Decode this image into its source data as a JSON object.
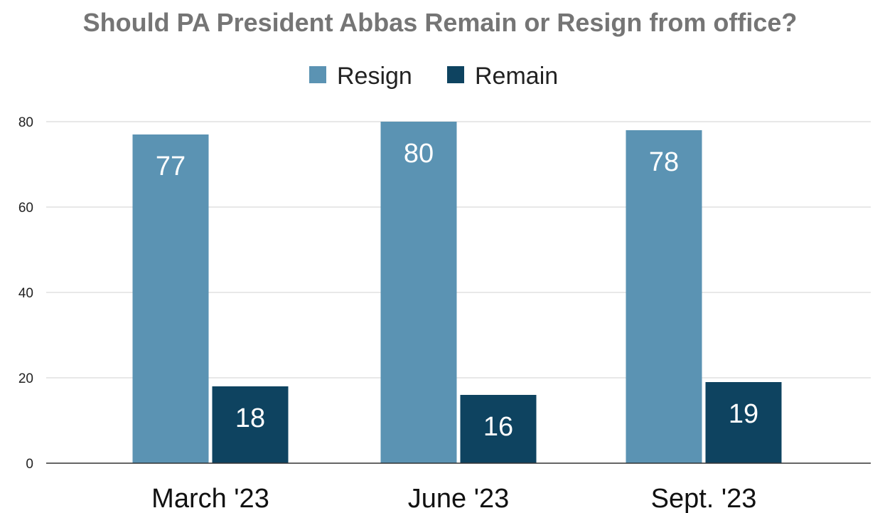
{
  "chart_data": {
    "type": "bar",
    "title": "Should PA President Abbas Remain or Resign from office?",
    "categories": [
      "March '23",
      "June '23",
      "Sept. '23"
    ],
    "series": [
      {
        "name": "Resign",
        "color": "#5b93b3",
        "values": [
          77,
          80,
          78
        ]
      },
      {
        "name": "Remain",
        "color": "#0e4360",
        "values": [
          18,
          16,
          19
        ]
      }
    ],
    "ylim": [
      0,
      80
    ],
    "yticks": [
      "0",
      "20",
      "40",
      "60",
      "80"
    ],
    "grid": true,
    "legend": "top-center",
    "colors": {
      "title": "#757575",
      "gridline": "#d9d9d9",
      "axis": "#333333"
    }
  }
}
